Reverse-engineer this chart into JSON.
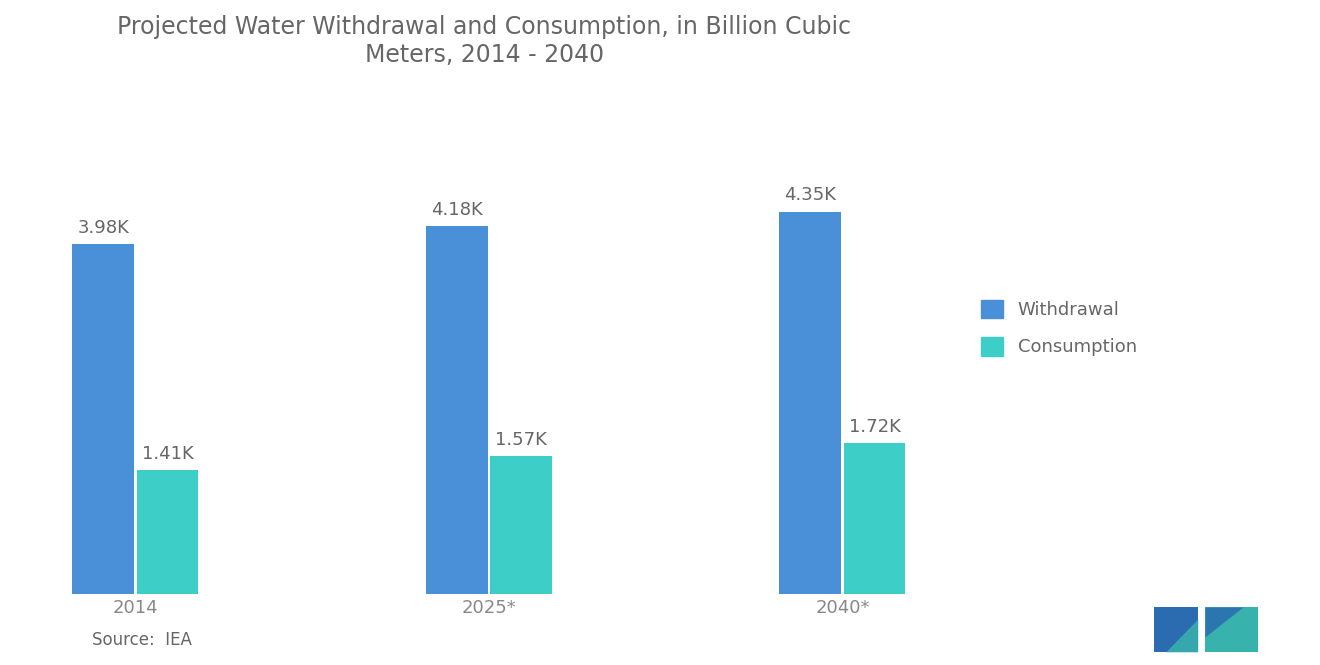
{
  "title": "Projected Water Withdrawal and Consumption, in Billion Cubic\nMeters, 2014 - 2040",
  "categories": [
    "2014",
    "2025*",
    "2040*"
  ],
  "withdrawal_values": [
    3980,
    4180,
    4350
  ],
  "consumption_values": [
    1410,
    1570,
    1720
  ],
  "withdrawal_labels": [
    "3.98K",
    "4.18K",
    "4.35K"
  ],
  "consumption_labels": [
    "1.41K",
    "1.57K",
    "1.72K"
  ],
  "withdrawal_color": "#4A90D9",
  "consumption_color": "#3ECEC8",
  "background_color": "#FFFFFF",
  "title_color": "#666666",
  "label_color": "#666666",
  "tick_color": "#888888",
  "source_text": "Source:  IEA",
  "legend_labels": [
    "Withdrawal",
    "Consumption"
  ],
  "ylim": [
    0,
    5500
  ],
  "bar_width": 0.28,
  "group_positions": [
    0.5,
    2.1,
    3.7
  ],
  "title_fontsize": 17,
  "tick_fontsize": 13,
  "label_fontsize": 13,
  "legend_fontsize": 13,
  "source_fontsize": 12,
  "logo_color_blue": "#2B6CB0",
  "logo_color_teal": "#38B2AC"
}
